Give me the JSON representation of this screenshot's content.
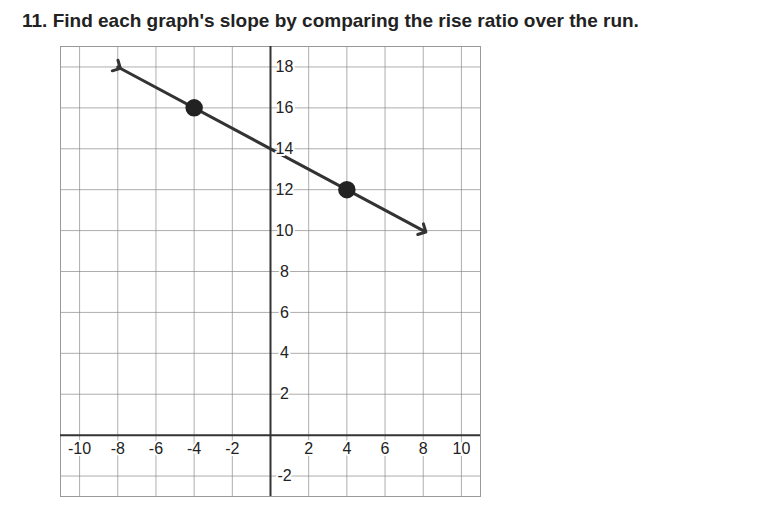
{
  "chart_data": {
    "type": "line",
    "title": "11. Find each graph's slope by comparing the rise ratio over the run.",
    "xlim": [
      -11,
      11
    ],
    "ylim": [
      -3,
      19
    ],
    "xticks": [
      -10,
      -8,
      -6,
      -4,
      -2,
      2,
      4,
      6,
      8,
      10
    ],
    "yticks": [
      -2,
      2,
      4,
      6,
      8,
      10,
      12,
      14,
      16,
      18
    ],
    "grid": true,
    "series": [
      {
        "type": "line",
        "marker": "arrow",
        "color": "#333333",
        "x": [
          -8,
          8
        ],
        "values": [
          18,
          10
        ]
      },
      {
        "type": "scatter",
        "marker": "circle",
        "color": "#222222",
        "x": [
          -4,
          4
        ],
        "values": [
          16,
          12
        ]
      }
    ]
  }
}
